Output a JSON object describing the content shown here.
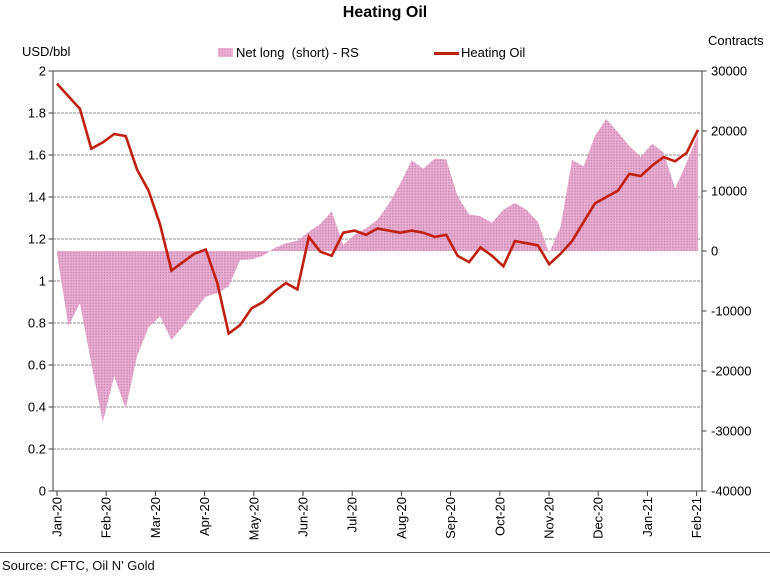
{
  "chart_data": {
    "type": "area",
    "subtype": "area-plus-line combo, weekly data",
    "title": "Heating Oil",
    "source_note": "Source: CFTC, Oil N' Gold",
    "grid": true,
    "legend_position": "top",
    "left_axis": {
      "unit_label": "USD/bbl",
      "min": 0,
      "max": 2,
      "tick_labels": [
        "2",
        "1.8",
        "1.6",
        "1.4",
        "1.2",
        "1",
        "0.8",
        "0.6",
        "0.4",
        "0.2",
        "0"
      ]
    },
    "right_axis": {
      "unit_label": "Contracts",
      "min": -40000,
      "max": 30000,
      "tick_labels": [
        "30000",
        "20000",
        "10000",
        "0",
        "-10000",
        "-20000",
        "-30000",
        "-40000"
      ]
    },
    "x_tick_labels": [
      "Jan-20",
      "Feb-20",
      "Mar-20",
      "Apr-20",
      "May-20",
      "Jun-20",
      "Jul-20",
      "Aug-20",
      "Sep-20",
      "Oct-20",
      "Nov-20",
      "Dec-20",
      "Jan-21",
      "Feb-21"
    ],
    "series": [
      {
        "name": "Net long  (short) - RS",
        "type": "area",
        "axis": "right",
        "pattern": "pink-dither",
        "color_base": "#ecaed2",
        "color_dot": "#be85ab",
        "values": [
          -500,
          -12500,
          -8700,
          -18700,
          -28500,
          -20900,
          -26300,
          -17500,
          -12700,
          -10900,
          -14800,
          -12600,
          -10000,
          -7600,
          -7000,
          -5900,
          -1500,
          -1400,
          -800,
          500,
          1300,
          1700,
          3200,
          4500,
          6600,
          1000,
          2700,
          3800,
          5200,
          7900,
          11300,
          15100,
          13700,
          15400,
          15300,
          9100,
          6100,
          5800,
          4700,
          6900,
          8000,
          6900,
          4900,
          -400,
          4100,
          15200,
          14100,
          19200,
          22000,
          19800,
          17500,
          15700,
          17900,
          16400,
          10400,
          14700,
          19400
        ]
      },
      {
        "name": "Heating Oil",
        "type": "line",
        "axis": "left",
        "color": "#c02010",
        "values": [
          1.94,
          1.88,
          1.82,
          1.63,
          1.66,
          1.7,
          1.69,
          1.53,
          1.43,
          1.27,
          1.05,
          1.09,
          1.13,
          1.15,
          0.99,
          0.75,
          0.79,
          0.87,
          0.9,
          0.95,
          0.99,
          0.96,
          1.21,
          1.14,
          1.12,
          1.23,
          1.24,
          1.22,
          1.25,
          1.24,
          1.23,
          1.24,
          1.23,
          1.21,
          1.22,
          1.12,
          1.09,
          1.16,
          1.12,
          1.07,
          1.19,
          1.18,
          1.17,
          1.08,
          1.13,
          1.19,
          1.28,
          1.37,
          1.4,
          1.43,
          1.51,
          1.5,
          1.55,
          1.59,
          1.57,
          1.61,
          1.72
        ]
      }
    ]
  }
}
